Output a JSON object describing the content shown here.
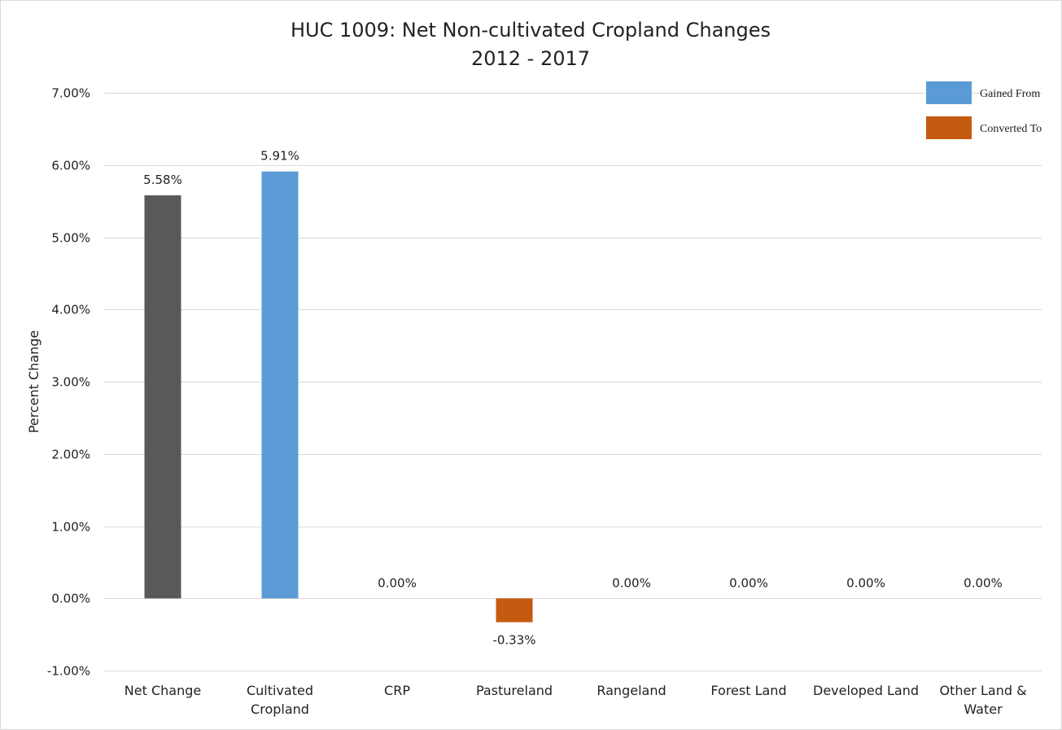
{
  "chart_data": {
    "type": "bar",
    "title": "HUC 1009: Net Non-cultivated Cropland Changes",
    "subtitle": "2012 - 2017",
    "ylabel": "Percent Change",
    "xlabel": "",
    "ylim": [
      -0.01,
      0.07
    ],
    "yticks": [
      -0.01,
      0.0,
      0.01,
      0.02,
      0.03,
      0.04,
      0.05,
      0.06,
      0.07
    ],
    "ytick_labels": [
      "-1.00%",
      "0.00%",
      "1.00%",
      "2.00%",
      "3.00%",
      "4.00%",
      "5.00%",
      "6.00%",
      "7.00%"
    ],
    "grid": true,
    "legend_position": "top-right",
    "categories": [
      [
        "Net Change"
      ],
      [
        "Cultivated",
        "Cropland"
      ],
      [
        "CRP"
      ],
      [
        "Pastureland"
      ],
      [
        "Rangeland"
      ],
      [
        "Forest Land"
      ],
      [
        "Developed Land"
      ],
      [
        "Other Land &",
        "Water"
      ]
    ],
    "values": [
      0.0558,
      0.0591,
      0.0,
      -0.0033,
      0.0,
      0.0,
      0.0,
      0.0
    ],
    "value_labels": [
      "5.58%",
      "5.91%",
      "0.00%",
      "-0.33%",
      "0.00%",
      "0.00%",
      "0.00%",
      "0.00%"
    ],
    "bar_colors": [
      "#595959",
      "#5b9bd5",
      "#5b9bd5",
      "#c55a11",
      "#5b9bd5",
      "#5b9bd5",
      "#5b9bd5",
      "#5b9bd5"
    ],
    "legend": [
      {
        "label": "Gained From",
        "color": "#5b9bd5"
      },
      {
        "label": "Converted To",
        "color": "#c55a11"
      }
    ]
  }
}
